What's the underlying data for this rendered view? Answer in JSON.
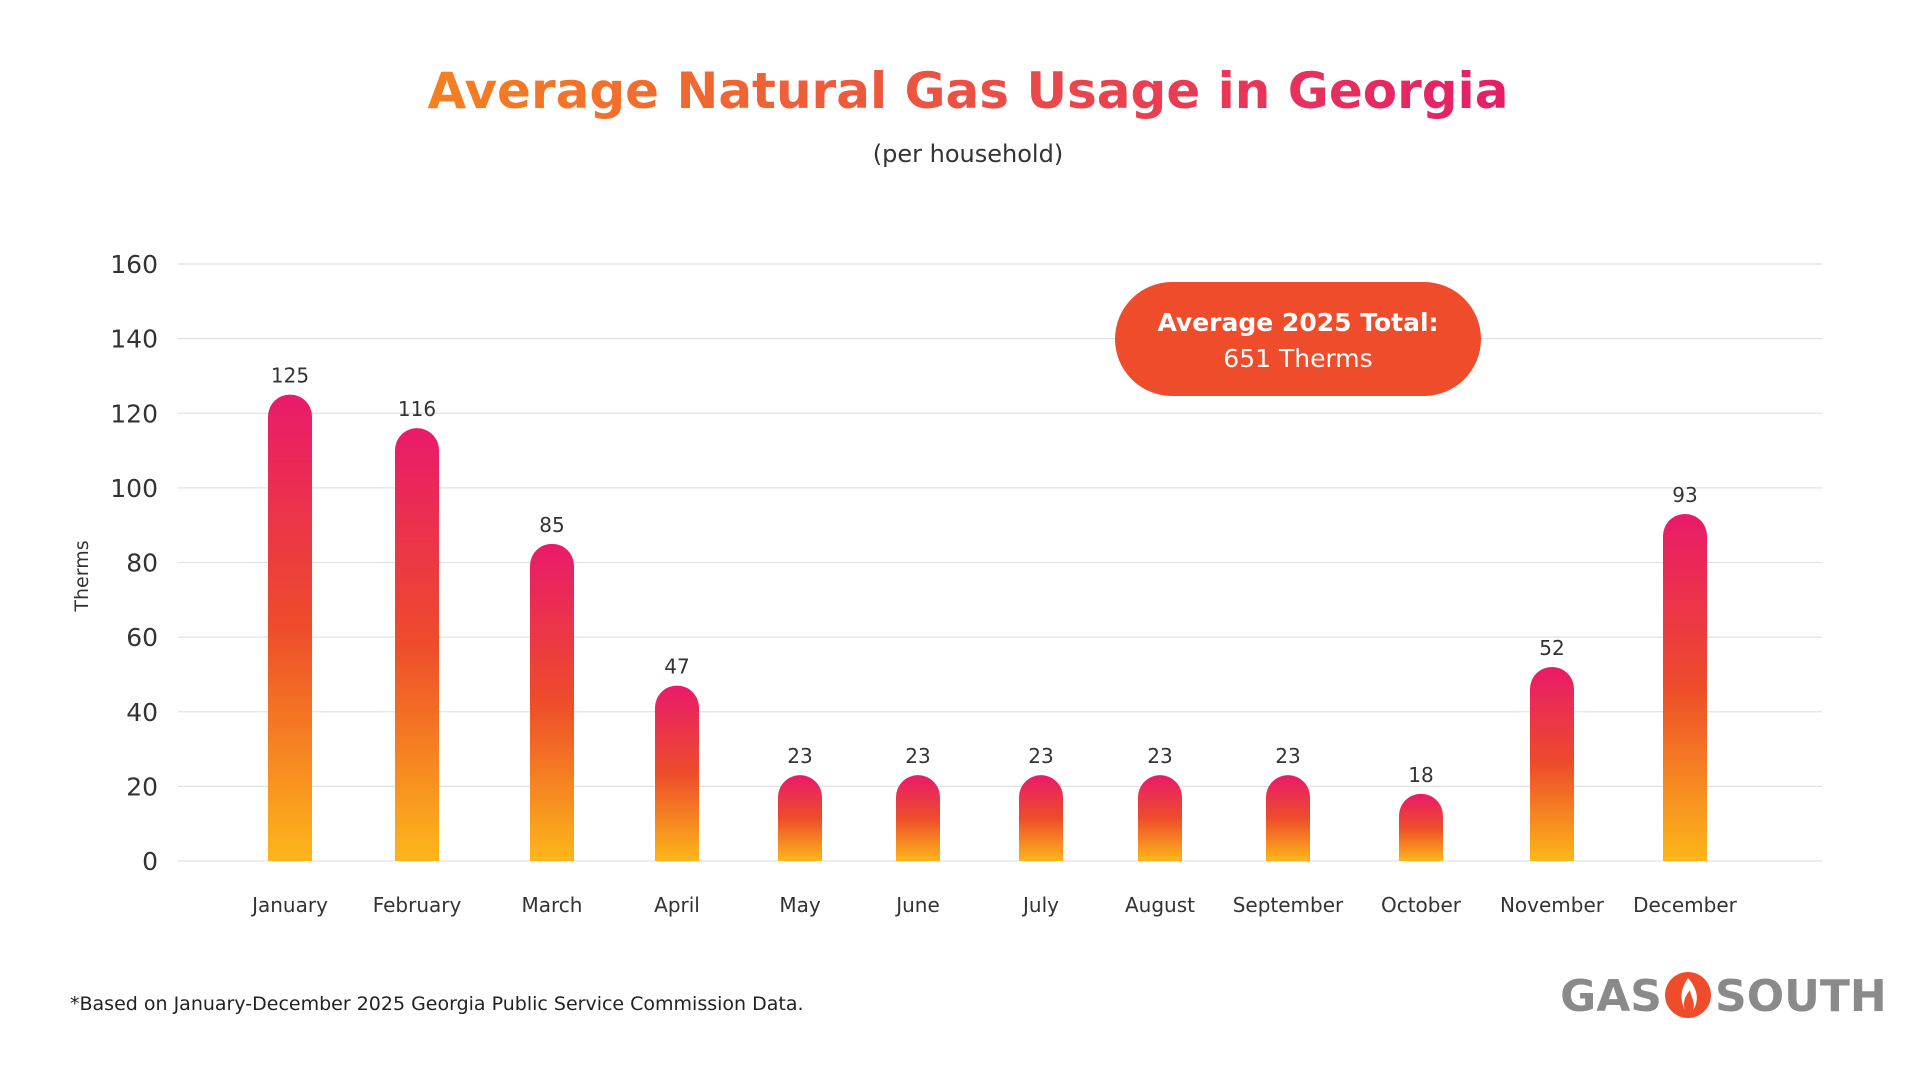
{
  "chart_data": {
    "type": "bar",
    "title": "Average Natural Gas Usage in Georgia",
    "subtitle": "(per household)",
    "xlabel": "",
    "ylabel": "Therms",
    "categories": [
      "January",
      "February",
      "March",
      "April",
      "May",
      "June",
      "July",
      "August",
      "September",
      "October",
      "November",
      "December"
    ],
    "values": [
      125,
      116,
      85,
      47,
      23,
      23,
      23,
      23,
      23,
      18,
      52,
      93
    ],
    "ylim": [
      0,
      160
    ],
    "yticks": [
      0,
      20,
      40,
      60,
      80,
      100,
      120,
      140,
      160
    ],
    "grid": true,
    "annotation": {
      "line1": "Average 2025 Total:",
      "line2": "651 Therms"
    }
  },
  "footnote": "*Based on January-December 2025 Georgia Public Service Commission Data.",
  "logo": {
    "left_text": "GAS",
    "right_text": "SOUTH",
    "icon": "flame-icon"
  },
  "colors": {
    "title_start": "#F4801F",
    "title_end": "#E41E6A",
    "bar_top": "#E91A6B",
    "bar_mid": "#EE4C2A",
    "bar_bottom": "#FDB71A",
    "callout_bg": "#EE4C2A",
    "grid": "#e2e2e2",
    "logo_gray": "#8a8a8a",
    "flame": "#EE4C2A"
  }
}
